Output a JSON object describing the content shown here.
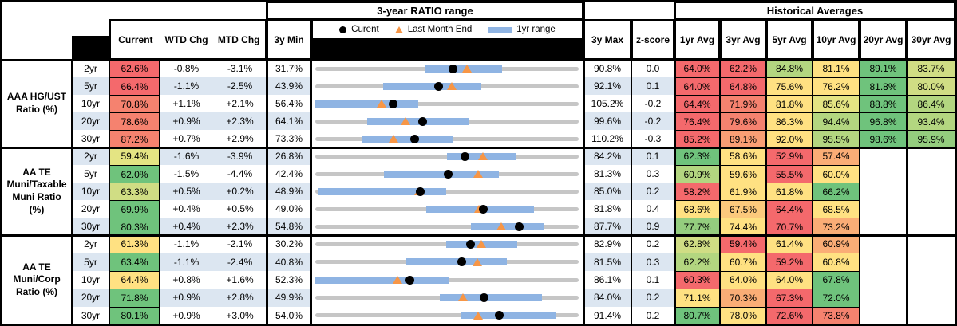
{
  "header": {
    "chart_group_title": "3-year RATIO range",
    "hist_group_title": "Historical Averages",
    "col_current": "Current",
    "col_wtd": "WTD Chg",
    "col_mtd": "MTD Chg",
    "col_min": "3y Min",
    "col_max": "3y Max",
    "col_z": "z-score",
    "avg_cols": [
      "1yr Avg",
      "3yr Avg",
      "5yr Avg",
      "10yr Avg",
      "20yr Avg",
      "30yr Avg"
    ],
    "legend": {
      "current": "Curent",
      "last_month": "Last Month End",
      "range": "1yr range"
    }
  },
  "colors": {
    "red": "#F4696C",
    "salmon": "#F5826F",
    "orange": "#F99E74",
    "lt_orange": "#FAAD76",
    "amber": "#FCC97C",
    "yellow": "#FFE182",
    "yellow_green": "#E4E483",
    "pale_green": "#D0DD84",
    "lt_green": "#B3D680",
    "med_green": "#94CD7E",
    "green": "#6FC37C",
    "row_blue": "#DCE6F1",
    "bar_blue": "#8FB4E3",
    "track_gray": "#C6C6C6",
    "marker_orange": "#F79646",
    "marker_black": "#000000"
  },
  "chart_data": {
    "type": "bullet-range-table",
    "x_scale": "each row spans its own 3y Min to 3y Max (ratio %)",
    "markers": {
      "dot": "Current value",
      "triangle": "Last Month End value",
      "blue_bar": "1yr range",
      "gray_track": "3y range"
    },
    "groups": [
      {
        "label": "AAA HG/UST Ratio (%)",
        "label_lines": [
          "AAA HG/UST",
          "Ratio (%)"
        ],
        "rows": [
          {
            "tenor": "2yr",
            "blue": false,
            "current": "62.6%",
            "cur_color": "red",
            "wtd": "-0.8%",
            "mtd": "-3.1%",
            "min3y": "31.7%",
            "max3y": "90.8%",
            "z": "0.0",
            "scale_lo": 31.7,
            "scale_hi": 90.8,
            "yr_range": [
              56.5,
              73.6
            ],
            "current_val": 62.6,
            "last_month_val": 65.7,
            "avgs": [
              {
                "v": "64.0%",
                "c": "red"
              },
              {
                "v": "62.2%",
                "c": "red"
              },
              {
                "v": "84.8%",
                "c": "lt_green"
              },
              {
                "v": "81.1%",
                "c": "yellow"
              },
              {
                "v": "89.1%",
                "c": "green"
              },
              {
                "v": "83.7%",
                "c": "pale_green"
              }
            ]
          },
          {
            "tenor": "5yr",
            "blue": true,
            "current": "66.4%",
            "cur_color": "red",
            "wtd": "-1.1%",
            "mtd": "-2.5%",
            "min3y": "43.9%",
            "max3y": "92.1%",
            "z": "0.1",
            "scale_lo": 43.9,
            "scale_hi": 92.1,
            "yr_range": [
              56.3,
              74.3
            ],
            "current_val": 66.4,
            "last_month_val": 68.9,
            "avgs": [
              {
                "v": "64.0%",
                "c": "red"
              },
              {
                "v": "64.8%",
                "c": "red"
              },
              {
                "v": "75.6%",
                "c": "yellow"
              },
              {
                "v": "76.2%",
                "c": "yellow"
              },
              {
                "v": "81.8%",
                "c": "green"
              },
              {
                "v": "80.0%",
                "c": "pale_green"
              }
            ]
          },
          {
            "tenor": "10yr",
            "blue": false,
            "current": "70.8%",
            "cur_color": "salmon",
            "wtd": "+1.1%",
            "mtd": "+2.1%",
            "min3y": "56.4%",
            "max3y": "105.2%",
            "z": "-0.2",
            "scale_lo": 56.4,
            "scale_hi": 105.2,
            "yr_range": [
              56.4,
              75.5
            ],
            "current_val": 70.8,
            "last_month_val": 68.7,
            "avgs": [
              {
                "v": "64.4%",
                "c": "red"
              },
              {
                "v": "71.9%",
                "c": "salmon"
              },
              {
                "v": "81.8%",
                "c": "yellow"
              },
              {
                "v": "85.6%",
                "c": "yellow_green"
              },
              {
                "v": "88.8%",
                "c": "green"
              },
              {
                "v": "86.4%",
                "c": "lt_green"
              }
            ]
          },
          {
            "tenor": "20yr",
            "blue": true,
            "current": "78.6%",
            "cur_color": "salmon",
            "wtd": "+0.9%",
            "mtd": "+2.3%",
            "min3y": "64.1%",
            "max3y": "99.6%",
            "z": "-0.2",
            "scale_lo": 64.1,
            "scale_hi": 99.6,
            "yr_range": [
              71.1,
              84.8
            ],
            "current_val": 78.6,
            "last_month_val": 76.3,
            "avgs": [
              {
                "v": "76.4%",
                "c": "red"
              },
              {
                "v": "79.6%",
                "c": "salmon"
              },
              {
                "v": "86.3%",
                "c": "yellow"
              },
              {
                "v": "94.4%",
                "c": "lt_green"
              },
              {
                "v": "96.8%",
                "c": "green"
              },
              {
                "v": "93.4%",
                "c": "lt_green"
              }
            ]
          },
          {
            "tenor": "30yr",
            "blue": false,
            "current": "87.2%",
            "cur_color": "salmon",
            "wtd": "+0.7%",
            "mtd": "+2.9%",
            "min3y": "73.3%",
            "max3y": "110.2%",
            "z": "-0.3",
            "scale_lo": 73.3,
            "scale_hi": 110.2,
            "yr_range": [
              79.9,
              92.5
            ],
            "current_val": 87.2,
            "last_month_val": 84.3,
            "avgs": [
              {
                "v": "85.2%",
                "c": "red"
              },
              {
                "v": "89.1%",
                "c": "orange"
              },
              {
                "v": "92.0%",
                "c": "yellow"
              },
              {
                "v": "95.5%",
                "c": "lt_green"
              },
              {
                "v": "98.6%",
                "c": "green"
              },
              {
                "v": "95.9%",
                "c": "med_green"
              }
            ]
          }
        ]
      },
      {
        "label": "AA TE Muni/Taxable Muni Ratio (%)",
        "label_lines": [
          "AA TE",
          "Muni/Taxable",
          "Muni Ratio",
          "(%)"
        ],
        "rows": [
          {
            "tenor": "2yr",
            "blue": true,
            "current": "59.4%",
            "cur_color": "yellow_green",
            "wtd": "-1.6%",
            "mtd": "-3.9%",
            "min3y": "26.8%",
            "max3y": "84.2%",
            "z": "0.1",
            "scale_lo": 26.8,
            "scale_hi": 84.2,
            "yr_range": [
              55.5,
              70.6
            ],
            "current_val": 59.4,
            "last_month_val": 63.3,
            "avgs": [
              {
                "v": "62.3%",
                "c": "green"
              },
              {
                "v": "58.6%",
                "c": "yellow"
              },
              {
                "v": "52.9%",
                "c": "red"
              },
              {
                "v": "57.4%",
                "c": "lt_orange"
              },
              null,
              null
            ]
          },
          {
            "tenor": "5yr",
            "blue": false,
            "current": "62.0%",
            "cur_color": "green",
            "wtd": "-1.5%",
            "mtd": "-4.4%",
            "min3y": "42.4%",
            "max3y": "81.3%",
            "z": "0.3",
            "scale_lo": 42.4,
            "scale_hi": 81.3,
            "yr_range": [
              52.5,
              69.5
            ],
            "current_val": 62.0,
            "last_month_val": 66.4,
            "avgs": [
              {
                "v": "60.9%",
                "c": "lt_green"
              },
              {
                "v": "59.6%",
                "c": "yellow"
              },
              {
                "v": "55.5%",
                "c": "red"
              },
              {
                "v": "60.0%",
                "c": "yellow"
              },
              null,
              null
            ]
          },
          {
            "tenor": "10yr",
            "blue": true,
            "current": "63.3%",
            "cur_color": "pale_green",
            "wtd": "+0.5%",
            "mtd": "+0.2%",
            "min3y": "48.9%",
            "max3y": "85.0%",
            "z": "0.2",
            "scale_lo": 48.9,
            "scale_hi": 85.0,
            "yr_range": [
              49.3,
              66.8
            ],
            "current_val": 63.3,
            "last_month_val": 63.1,
            "avgs": [
              {
                "v": "58.2%",
                "c": "red"
              },
              {
                "v": "61.9%",
                "c": "yellow"
              },
              {
                "v": "61.8%",
                "c": "yellow"
              },
              {
                "v": "66.2%",
                "c": "green"
              },
              null,
              null
            ]
          },
          {
            "tenor": "20yr",
            "blue": false,
            "current": "69.9%",
            "cur_color": "green",
            "wtd": "+0.4%",
            "mtd": "+0.5%",
            "min3y": "49.0%",
            "max3y": "81.8%",
            "z": "0.4",
            "scale_lo": 49.0,
            "scale_hi": 81.8,
            "yr_range": [
              62.8,
              76.2
            ],
            "current_val": 69.9,
            "last_month_val": 69.4,
            "avgs": [
              {
                "v": "68.6%",
                "c": "yellow"
              },
              {
                "v": "67.5%",
                "c": "amber"
              },
              {
                "v": "64.4%",
                "c": "red"
              },
              {
                "v": "68.5%",
                "c": "yellow"
              },
              null,
              null
            ]
          },
          {
            "tenor": "30yr",
            "blue": true,
            "current": "80.3%",
            "cur_color": "green",
            "wtd": "+0.4%",
            "mtd": "+2.3%",
            "min3y": "54.8%",
            "max3y": "87.7%",
            "z": "0.9",
            "scale_lo": 54.8,
            "scale_hi": 87.7,
            "yr_range": [
              74.2,
              83.4
            ],
            "current_val": 80.3,
            "last_month_val": 78.0,
            "avgs": [
              {
                "v": "77.7%",
                "c": "med_green"
              },
              {
                "v": "74.4%",
                "c": "yellow"
              },
              {
                "v": "70.7%",
                "c": "red"
              },
              {
                "v": "73.2%",
                "c": "lt_orange"
              },
              null,
              null
            ]
          }
        ]
      },
      {
        "label": "AA TE Muni/Corp Ratio (%)",
        "label_lines": [
          "AA TE",
          "Muni/Corp",
          "Ratio (%)"
        ],
        "rows": [
          {
            "tenor": "2yr",
            "blue": false,
            "current": "61.3%",
            "cur_color": "yellow",
            "wtd": "-1.1%",
            "mtd": "-2.1%",
            "min3y": "30.2%",
            "max3y": "82.9%",
            "z": "0.2",
            "scale_lo": 30.2,
            "scale_hi": 82.9,
            "yr_range": [
              56.4,
              70.6
            ],
            "current_val": 61.3,
            "last_month_val": 63.4,
            "avgs": [
              {
                "v": "62.8%",
                "c": "pale_green"
              },
              {
                "v": "59.4%",
                "c": "red"
              },
              {
                "v": "61.4%",
                "c": "yellow"
              },
              {
                "v": "60.9%",
                "c": "lt_orange"
              },
              null,
              null
            ]
          },
          {
            "tenor": "5yr",
            "blue": true,
            "current": "63.4%",
            "cur_color": "green",
            "wtd": "-1.1%",
            "mtd": "-2.4%",
            "min3y": "40.8%",
            "max3y": "81.5%",
            "z": "0.3",
            "scale_lo": 40.8,
            "scale_hi": 81.5,
            "yr_range": [
              54.8,
              70.4
            ],
            "current_val": 63.4,
            "last_month_val": 65.8,
            "avgs": [
              {
                "v": "62.2%",
                "c": "lt_green"
              },
              {
                "v": "60.7%",
                "c": "yellow"
              },
              {
                "v": "59.2%",
                "c": "red"
              },
              {
                "v": "60.8%",
                "c": "yellow"
              },
              null,
              null
            ]
          },
          {
            "tenor": "10yr",
            "blue": false,
            "current": "64.4%",
            "cur_color": "yellow",
            "wtd": "+0.8%",
            "mtd": "+1.6%",
            "min3y": "52.3%",
            "max3y": "86.1%",
            "z": "0.1",
            "scale_lo": 52.3,
            "scale_hi": 86.1,
            "yr_range": [
              52.3,
              69.5
            ],
            "current_val": 64.4,
            "last_month_val": 62.8,
            "avgs": [
              {
                "v": "60.3%",
                "c": "red"
              },
              {
                "v": "64.0%",
                "c": "yellow"
              },
              {
                "v": "64.0%",
                "c": "yellow"
              },
              {
                "v": "67.8%",
                "c": "green"
              },
              null,
              null
            ]
          },
          {
            "tenor": "20yr",
            "blue": true,
            "current": "71.8%",
            "cur_color": "green",
            "wtd": "+0.9%",
            "mtd": "+2.8%",
            "min3y": "49.9%",
            "max3y": "84.0%",
            "z": "0.2",
            "scale_lo": 49.9,
            "scale_hi": 84.0,
            "yr_range": [
              66.0,
              79.2
            ],
            "current_val": 71.8,
            "last_month_val": 69.0,
            "avgs": [
              {
                "v": "71.1%",
                "c": "yellow"
              },
              {
                "v": "70.3%",
                "c": "lt_orange"
              },
              {
                "v": "67.3%",
                "c": "red"
              },
              {
                "v": "72.0%",
                "c": "green"
              },
              null,
              null
            ]
          },
          {
            "tenor": "30yr",
            "blue": false,
            "current": "80.1%",
            "cur_color": "green",
            "wtd": "+0.9%",
            "mtd": "+3.0%",
            "min3y": "54.0%",
            "max3y": "91.4%",
            "z": "0.2",
            "scale_lo": 54.0,
            "scale_hi": 91.4,
            "yr_range": [
              74.6,
              88.2
            ],
            "current_val": 80.1,
            "last_month_val": 77.1,
            "avgs": [
              {
                "v": "80.7%",
                "c": "green"
              },
              {
                "v": "78.0%",
                "c": "yellow"
              },
              {
                "v": "72.6%",
                "c": "red"
              },
              {
                "v": "73.8%",
                "c": "salmon"
              },
              null,
              null
            ]
          }
        ]
      }
    ]
  }
}
